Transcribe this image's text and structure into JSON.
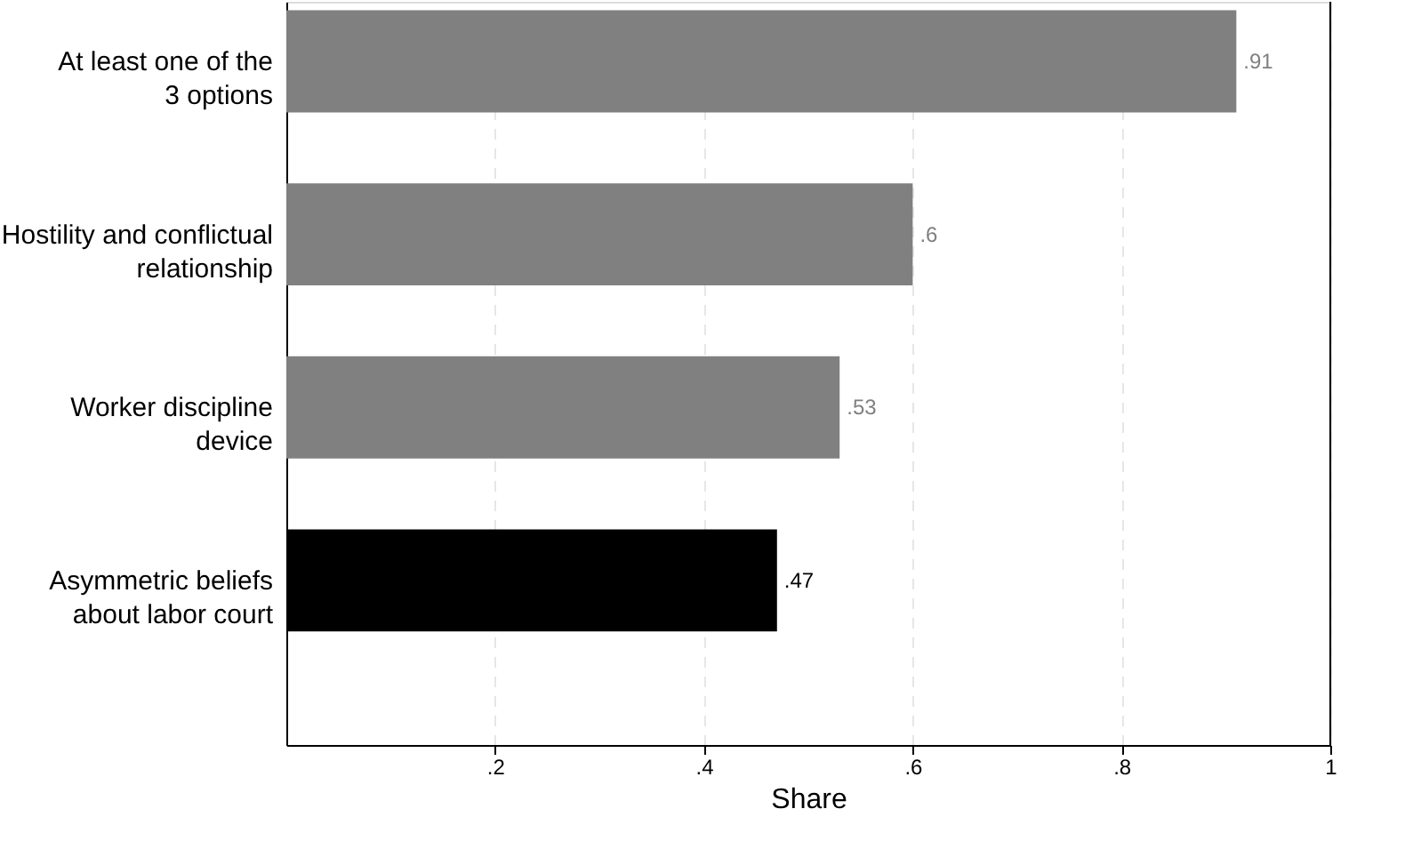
{
  "chart_data": {
    "type": "bar",
    "orientation": "horizontal",
    "xlabel": "Share",
    "categories": [
      "At least one of the\n3 options",
      "Hostility and conflictual\nrelationship",
      "Worker discipline\ndevice",
      "Asymmetric beliefs\nabout labor court"
    ],
    "values": [
      0.91,
      0.6,
      0.53,
      0.47
    ],
    "colors": [
      "#808080",
      "#808080",
      "#808080",
      "#000000"
    ],
    "xlim": [
      0,
      1
    ],
    "xticks": [
      {
        "value": 0.2,
        "label": ".2"
      },
      {
        "value": 0.4,
        "label": ".4"
      },
      {
        "value": 0.6,
        "label": ".6"
      },
      {
        "value": 0.8,
        "label": ".8"
      },
      {
        "value": 1,
        "label": "1"
      }
    ],
    "value_labels": [
      ".91",
      ".6",
      ".53",
      ".47"
    ],
    "grid": "x"
  }
}
